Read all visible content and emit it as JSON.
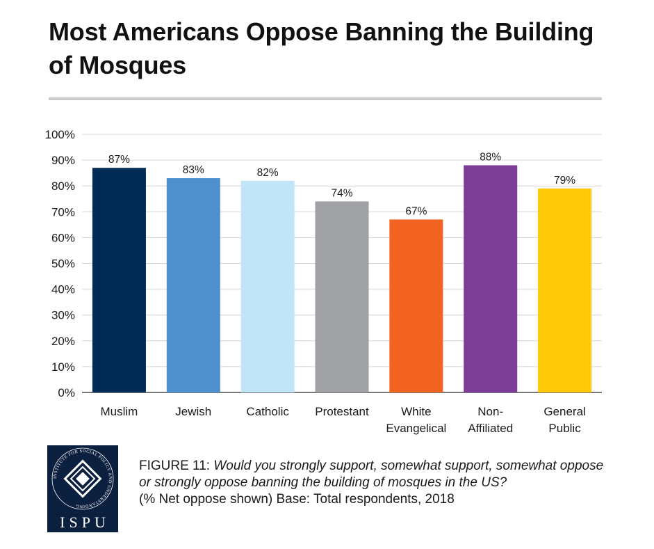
{
  "title": "Most Americans Oppose Banning the Building of Mosques",
  "chart_data": {
    "type": "bar",
    "title": "Most Americans Oppose Banning the Building of Mosques",
    "xlabel": "",
    "ylabel": "",
    "ylim": [
      0,
      100
    ],
    "yticks": [
      "0%",
      "10%",
      "20%",
      "30%",
      "40%",
      "50%",
      "60%",
      "70%",
      "80%",
      "90%",
      "100%"
    ],
    "grid": true,
    "categories": [
      [
        "Muslim"
      ],
      [
        "Jewish"
      ],
      [
        "Catholic"
      ],
      [
        "Protestant"
      ],
      [
        "White",
        "Evangelical"
      ],
      [
        "Non-",
        "Affiliated"
      ],
      [
        "General",
        "Public"
      ]
    ],
    "values": [
      87,
      83,
      82,
      74,
      67,
      88,
      79
    ],
    "value_labels": [
      "87%",
      "83%",
      "82%",
      "74%",
      "67%",
      "88%",
      "79%"
    ],
    "colors": [
      "#002b54",
      "#4d90cd",
      "#c1e5f6",
      "#a0a1a4",
      "#f26322",
      "#7b3d96",
      "#ffc90a"
    ]
  },
  "figure": {
    "label": "FIGURE 11",
    "question": "Would you strongly support, somewhat support, somewhat oppose or strongly oppose banning the building of mosques in the US?",
    "note": "(% Net oppose shown) Base: Total respondents, 2018"
  },
  "logo": {
    "text": "ISPU",
    "ring_text": "INSTITUTE FOR SOCIAL POLICY AND UNDERSTANDING"
  }
}
